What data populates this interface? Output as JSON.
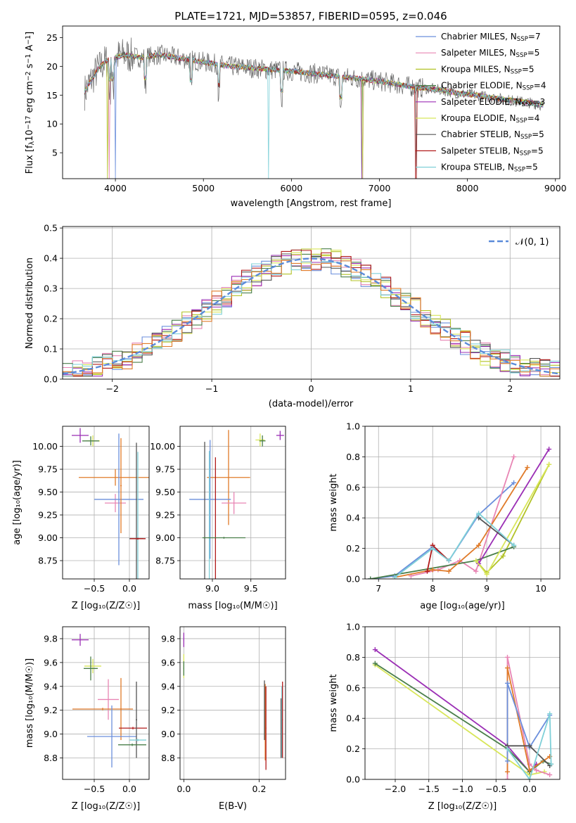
{
  "figure": {
    "title": "PLATE=1721, MJD=53857, FIBERID=0595, z=0.046"
  },
  "colors": {
    "chabrier_miles": "#6b8fdc",
    "salpeter_miles": "#e885b4",
    "kroupa_miles": "#b2c227",
    "chabrier_elodie": "#4a7f4a",
    "salpeter_elodie": "#9b2fb5",
    "kroupa_elodie": "#d8e65a",
    "chabrier_stelib": "#555555",
    "salpeter_stelib": "#b11a1a",
    "kroupa_stelib": "#7fd0d8",
    "orange": "#e07b2a",
    "gaussian": "#5b8bd9"
  },
  "chart_data": [
    {
      "id": "spectrum",
      "type": "line",
      "title": "PLATE=1721, MJD=53857, FIBERID=0595, z=0.046",
      "xlabel": "wavelength [Angstrom, rest frame]",
      "ylabel_parts": {
        "pre": "Flux [f",
        "sub": "λ",
        "mid": "10",
        "sup": "−17",
        "post": " erg cm",
        "sup2": "−2",
        "post2": " s",
        "sup3": "−1",
        "post3": " A",
        "sup4": "−1",
        "end": "]"
      },
      "xlim": [
        3400,
        9050
      ],
      "ylim": [
        0.5,
        27
      ],
      "xticks": [
        4000,
        5000,
        6000,
        7000,
        8000,
        9000
      ],
      "yticks": [
        5,
        10,
        15,
        20,
        25
      ],
      "legend": "top-right",
      "continuum": [
        [
          3650,
          15.5
        ],
        [
          3700,
          17
        ],
        [
          3800,
          19.5
        ],
        [
          3900,
          21
        ],
        [
          4000,
          21.5
        ],
        [
          4100,
          22
        ],
        [
          4300,
          21.5
        ],
        [
          4500,
          22
        ],
        [
          4700,
          21.5
        ],
        [
          4900,
          21
        ],
        [
          5100,
          20.5
        ],
        [
          5300,
          20
        ],
        [
          5500,
          19.8
        ],
        [
          5700,
          19.5
        ],
        [
          5900,
          19.3
        ],
        [
          6100,
          19
        ],
        [
          6300,
          18.7
        ],
        [
          6500,
          18.3
        ],
        [
          6700,
          18
        ],
        [
          6900,
          17.6
        ],
        [
          7100,
          17.2
        ],
        [
          7300,
          16.6
        ],
        [
          7500,
          16.2
        ],
        [
          7700,
          15.9
        ],
        [
          7900,
          15.3
        ],
        [
          8100,
          15.0
        ],
        [
          8300,
          14.5
        ],
        [
          8500,
          14.1
        ],
        [
          8700,
          13.7
        ],
        [
          8850,
          13.3
        ]
      ],
      "absorption_lines": [
        3935,
        3970,
        4340,
        4862,
        5175,
        5890,
        6563
      ],
      "series": [
        {
          "name_pre": "Chabrier MILES, N",
          "name_sub": "SSP",
          "name_post": "=7",
          "color": "#6b8fdc",
          "dip": [
            4000,
            0.5
          ]
        },
        {
          "name_pre": "Salpeter MILES, N",
          "name_sub": "SSP",
          "name_post": "=5",
          "color": "#e885b4",
          "dip": [
            3930,
            0.5
          ]
        },
        {
          "name_pre": "Kroupa MILES, N",
          "name_sub": "SSP",
          "name_post": "=5",
          "color": "#b2c227",
          "dip": [
            3910,
            0.5
          ]
        },
        {
          "name_pre": "Chabrier ELODIE, N",
          "name_sub": "SSP",
          "name_post": "=4",
          "color": "#4a7f4a",
          "dip": [
            6800,
            0.5
          ]
        },
        {
          "name_pre": "Salpeter ELODIE, N",
          "name_sub": "SSP",
          "name_post": "=3",
          "color": "#9b2fb5",
          "dip": [
            6805,
            0.5
          ]
        },
        {
          "name_pre": "Kroupa ELODIE, N",
          "name_sub": "SSP",
          "name_post": "=4",
          "color": "#d8e65a",
          "dip": [
            6810,
            0.5
          ]
        },
        {
          "name_pre": "Chabrier STELIB, N",
          "name_sub": "SSP",
          "name_post": "=5",
          "color": "#555555",
          "dip": [
            7420,
            0.5
          ]
        },
        {
          "name_pre": "Salpeter STELIB, N",
          "name_sub": "SSP",
          "name_post": "=5",
          "color": "#b11a1a",
          "dip": [
            7415,
            0.5
          ]
        },
        {
          "name_pre": "Kroupa STELIB, N",
          "name_sub": "SSP",
          "name_post": "=5",
          "color": "#7fd0d8",
          "dip": [
            5740,
            0.5
          ]
        }
      ]
    },
    {
      "id": "residuals",
      "type": "line",
      "xlabel": "(data-model)/error",
      "ylabel": "Normed distribution",
      "xlim": [
        -2.5,
        2.5
      ],
      "ylim": [
        0,
        0.505
      ],
      "xticks": [
        -2,
        -1,
        0,
        1,
        2
      ],
      "xtick_labels": [
        "−2",
        "−1",
        "0",
        "1",
        "2"
      ],
      "yticks": [
        0.0,
        0.1,
        0.2,
        0.3,
        0.4,
        0.5
      ],
      "ytick_labels": [
        "0.0",
        "0.1",
        "0.2",
        "0.3",
        "0.4",
        "0.5"
      ],
      "grid": true,
      "legend": "top-right",
      "gaussian_label": "𝒩(0, 1)",
      "bin_width": 0.1,
      "bin_start": -2.5
    },
    {
      "id": "age_vs_Z",
      "type": "scatter",
      "xlabel": "Z [log₁₀(Z/Z☉)]",
      "ylabel": "age  [log₁₀(age/yr)]",
      "xlim": [
        -0.95,
        0.28
      ],
      "ylim": [
        8.55,
        10.22
      ],
      "xticks": [
        -0.5,
        0.0
      ],
      "xtick_labels": [
        "−0.5",
        "0.0"
      ],
      "yticks": [
        8.75,
        9.0,
        9.25,
        9.5,
        9.75,
        10.0
      ],
      "ytick_labels": [
        "8.75",
        "9.00",
        "9.25",
        "9.50",
        "9.75",
        "10.00"
      ],
      "points": [
        {
          "x": -0.7,
          "y": 10.12,
          "xerr": 0.12,
          "yerr": 0.08,
          "color": "#9b2fb5"
        },
        {
          "x": -0.52,
          "y": 10.06,
          "xerr": 0.1,
          "yerr": 0.06,
          "color": "#d8e65a"
        },
        {
          "x": -0.55,
          "y": 10.06,
          "xerr": 0.12,
          "yerr": 0.05,
          "color": "#4a7f4a"
        },
        {
          "x": -0.2,
          "y": 9.66,
          "xerr": 0.52,
          "yerr": 0.09,
          "color": "#e07b2a"
        },
        {
          "x": -0.2,
          "y": 9.38,
          "xerr": 0.15,
          "yerr": 0.1,
          "color": "#e885b4"
        },
        {
          "x": -0.15,
          "y": 9.42,
          "xerr": 0.35,
          "yerr": 0.72,
          "color": "#6b8fdc"
        },
        {
          "x": -0.12,
          "y": 9.57,
          "xerr": 0.01,
          "yerr": 0.52,
          "color": "#e07b2a"
        },
        {
          "x": 0.1,
          "y": 8.99,
          "xerr": 0.1,
          "yerr": 1.05,
          "color": "#555555"
        },
        {
          "x": 0.12,
          "y": 8.99,
          "xerr": 0.01,
          "yerr": 0.95,
          "color": "#7fd0d8"
        },
        {
          "x": 0.12,
          "y": 8.99,
          "xerr": 0.11,
          "yerr": 0.01,
          "color": "#b11a1a"
        }
      ]
    },
    {
      "id": "age_vs_mass",
      "type": "scatter",
      "xlabel": "mass [log₁₀(M/M☉)]",
      "ylabel": "",
      "xlim": [
        8.58,
        9.95
      ],
      "ylim": [
        8.55,
        10.22
      ],
      "xticks": [
        9.0,
        9.5
      ],
      "xtick_labels": [
        "9.0",
        "9.5"
      ],
      "yticks": [
        8.75,
        9.0,
        9.25,
        9.5,
        9.75,
        10.0
      ],
      "ytick_labels": [
        "8.75",
        "9.00",
        "9.25",
        "9.50",
        "9.75",
        "10.00"
      ],
      "points": [
        {
          "x": 9.88,
          "y": 10.12,
          "xerr": 0.05,
          "yerr": 0.05,
          "color": "#9b2fb5"
        },
        {
          "x": 9.62,
          "y": 10.07,
          "xerr": 0.06,
          "yerr": 0.07,
          "color": "#d8e65a"
        },
        {
          "x": 9.65,
          "y": 10.06,
          "xerr": 0.04,
          "yerr": 0.06,
          "color": "#4a7f4a"
        },
        {
          "x": 9.21,
          "y": 9.66,
          "xerr": 0.28,
          "yerr": 0.52,
          "color": "#e07b2a"
        },
        {
          "x": 9.28,
          "y": 9.38,
          "xerr": 0.16,
          "yerr": 0.12,
          "color": "#e885b4"
        },
        {
          "x": 8.97,
          "y": 9.42,
          "xerr": 0.27,
          "yerr": 0.65,
          "color": "#6b8fdc"
        },
        {
          "x": 9.04,
          "y": 9.0,
          "xerr": 0.01,
          "yerr": 0.88,
          "color": "#b11a1a"
        },
        {
          "x": 8.9,
          "y": 9.0,
          "xerr": 0.01,
          "yerr": 1.05,
          "color": "#555555"
        },
        {
          "x": 8.96,
          "y": 9.0,
          "xerr": 0.01,
          "yerr": 0.95,
          "color": "#7fd0d8"
        },
        {
          "x": 9.15,
          "y": 9.0,
          "xerr": 0.28,
          "yerr": 0.01,
          "color": "#4a7f4a"
        }
      ]
    },
    {
      "id": "mw_vs_age",
      "type": "line",
      "xlabel": "age  [log₁₀(age/yr)]",
      "ylabel": "mass weight",
      "xlim": [
        6.75,
        10.35
      ],
      "ylim": [
        0,
        1
      ],
      "xticks": [
        7,
        8,
        9,
        10
      ],
      "xtick_labels": [
        "7",
        "8",
        "9",
        "10"
      ],
      "yticks": [
        0,
        0.2,
        0.4,
        0.6,
        0.8,
        1.0
      ],
      "ytick_labels": [
        "0.0",
        "0.2",
        "0.4",
        "0.6",
        "0.8",
        "1.0"
      ],
      "grid": true,
      "series": [
        {
          "color": "#6b8fdc",
          "x": [
            6.85,
            7.3,
            8.0,
            8.3,
            8.85,
            9.5
          ],
          "y": [
            0.0,
            0.02,
            0.21,
            0.12,
            0.42,
            0.63
          ]
        },
        {
          "color": "#e885b4",
          "x": [
            7.6,
            8.1,
            8.5,
            8.8,
            9.5
          ],
          "y": [
            0.02,
            0.06,
            0.12,
            0.05,
            0.8
          ]
        },
        {
          "color": "#b2c227",
          "x": [
            8.8,
            9.0,
            9.3,
            10.15
          ],
          "y": [
            0.12,
            0.04,
            0.15,
            0.75
          ]
        },
        {
          "color": "#4a7f4a",
          "x": [
            6.85,
            8.8,
            9.5
          ],
          "y": [
            0.0,
            0.12,
            0.21
          ]
        },
        {
          "color": "#9b2fb5",
          "x": [
            8.85,
            10.15
          ],
          "y": [
            0.1,
            0.85
          ]
        },
        {
          "color": "#d8e65a",
          "x": [
            8.8,
            9.0,
            10.15
          ],
          "y": [
            0.12,
            0.03,
            0.75
          ]
        },
        {
          "color": "#e07b2a",
          "x": [
            7.3,
            8.0,
            8.3,
            8.85,
            9.75
          ],
          "y": [
            0.01,
            0.06,
            0.05,
            0.22,
            0.73
          ]
        },
        {
          "color": "#555555",
          "x": [
            8.85,
            9.5
          ],
          "y": [
            0.4,
            0.22
          ]
        },
        {
          "color": "#b11a1a",
          "x": [
            7.9,
            8.0,
            8.3
          ],
          "y": [
            0.05,
            0.22,
            0.12
          ]
        },
        {
          "color": "#7fd0d8",
          "x": [
            7.3,
            8.0,
            8.3,
            8.85,
            9.5
          ],
          "y": [
            0.01,
            0.2,
            0.12,
            0.43,
            0.22
          ]
        }
      ]
    },
    {
      "id": "mass_vs_Z",
      "type": "scatter",
      "xlabel": "Z [log₁₀(Z/Z☉)]",
      "ylabel": "mass [log₁₀(M/M☉)]",
      "xlim": [
        -0.95,
        0.28
      ],
      "ylim": [
        8.62,
        9.9
      ],
      "xticks": [
        -0.5,
        0.0
      ],
      "xtick_labels": [
        "−0.5",
        "0.0"
      ],
      "yticks": [
        8.8,
        9.0,
        9.2,
        9.4,
        9.6,
        9.8
      ],
      "ytick_labels": [
        "8.8",
        "9.0",
        "9.2",
        "9.4",
        "9.6",
        "9.8"
      ],
      "points": [
        {
          "x": -0.7,
          "y": 9.79,
          "xerr": 0.12,
          "yerr": 0.05,
          "color": "#9b2fb5"
        },
        {
          "x": -0.52,
          "y": 9.57,
          "xerr": 0.12,
          "yerr": 0.06,
          "color": "#d8e65a"
        },
        {
          "x": -0.55,
          "y": 9.55,
          "xerr": 0.1,
          "yerr": 0.1,
          "color": "#4a7f4a"
        },
        {
          "x": -0.3,
          "y": 9.29,
          "xerr": 0.15,
          "yerr": 0.17,
          "color": "#e885b4"
        },
        {
          "x": -0.38,
          "y": 9.21,
          "xerr": 0.43,
          "yerr": 0.01,
          "color": "#e07b2a"
        },
        {
          "x": -0.12,
          "y": 9.21,
          "xerr": 0.01,
          "yerr": 0.26,
          "color": "#e07b2a"
        },
        {
          "x": -0.25,
          "y": 8.98,
          "xerr": 0.35,
          "yerr": 0.26,
          "color": "#6b8fdc"
        },
        {
          "x": 0.05,
          "y": 9.05,
          "xerr": 0.2,
          "yerr": 0.01,
          "color": "#b11a1a"
        },
        {
          "x": 0.1,
          "y": 9.12,
          "xerr": 0.01,
          "yerr": 0.32,
          "color": "#555555"
        },
        {
          "x": 0.04,
          "y": 8.91,
          "xerr": 0.2,
          "yerr": 0.01,
          "color": "#4a7f4a"
        },
        {
          "x": 0.12,
          "y": 8.95,
          "xerr": 0.12,
          "yerr": 0.01,
          "color": "#7fd0d8"
        }
      ]
    },
    {
      "id": "mass_vs_ebv",
      "type": "scatter",
      "xlabel": "E(B-V)",
      "ylabel": "",
      "xlim": [
        -0.01,
        0.27
      ],
      "ylim": [
        8.62,
        9.9
      ],
      "xticks": [
        0.0,
        0.2
      ],
      "xtick_labels": [
        "0.0",
        "0.2"
      ],
      "yticks": [
        8.8,
        9.0,
        9.2,
        9.4,
        9.6,
        9.8
      ],
      "ytick_labels": [
        "8.8",
        "9.0",
        "9.2",
        "9.4",
        "9.6",
        "9.8"
      ],
      "points": [
        {
          "x": 0.0,
          "y": 9.79,
          "xerr": 0.001,
          "yerr": 0.06,
          "color": "#9b2fb5"
        },
        {
          "x": 0.0,
          "y": 9.57,
          "xerr": 0.001,
          "yerr": 0.1,
          "color": "#d8e65a"
        },
        {
          "x": 0.0,
          "y": 9.55,
          "xerr": 0.001,
          "yerr": 0.06,
          "color": "#4a7f4a"
        },
        {
          "x": 0.216,
          "y": 9.1,
          "xerr": 0.001,
          "yerr": 0.32,
          "color": "#e07b2a"
        },
        {
          "x": 0.218,
          "y": 9.05,
          "xerr": 0.001,
          "yerr": 0.35,
          "color": "#b11a1a"
        },
        {
          "x": 0.214,
          "y": 9.2,
          "xerr": 0.001,
          "yerr": 0.25,
          "color": "#555555"
        },
        {
          "x": 0.26,
          "y": 9.1,
          "xerr": 0.001,
          "yerr": 0.3,
          "color": "#7fd0d8"
        },
        {
          "x": 0.262,
          "y": 9.12,
          "xerr": 0.001,
          "yerr": 0.32,
          "color": "#b11a1a"
        },
        {
          "x": 0.258,
          "y": 9.05,
          "xerr": 0.001,
          "yerr": 0.25,
          "color": "#555555"
        }
      ]
    },
    {
      "id": "mw_vs_Z",
      "type": "line",
      "xlabel": "Z [log₁₀(Z/Z☉)]",
      "ylabel": "mass weight",
      "xlim": [
        -2.45,
        0.45
      ],
      "ylim": [
        0,
        1
      ],
      "xticks": [
        -2.0,
        -1.5,
        -1.0,
        -0.5,
        0.0
      ],
      "xtick_labels": [
        "−2.0",
        "−1.5",
        "−1.0",
        "−0.5",
        "0.0"
      ],
      "yticks": [
        0,
        0.2,
        0.4,
        0.6,
        0.8,
        1.0
      ],
      "ytick_labels": [
        "0.0",
        "0.2",
        "0.4",
        "0.6",
        "0.8",
        "1.0"
      ],
      "grid": true,
      "series": [
        {
          "color": "#9b2fb5",
          "x": [
            -2.3,
            -0.33,
            0.0,
            0.1
          ],
          "y": [
            0.85,
            0.22,
            0.05,
            0.1
          ]
        },
        {
          "color": "#d8e65a",
          "x": [
            -2.3,
            0.0,
            0.22
          ],
          "y": [
            0.75,
            0.03,
            0.05
          ]
        },
        {
          "color": "#4a7f4a",
          "x": [
            -2.3,
            -0.33,
            0.0,
            0.2,
            0.32
          ],
          "y": [
            0.76,
            0.2,
            0.05,
            0.12,
            0.1
          ]
        },
        {
          "color": "#e885b4",
          "x": [
            -0.33,
            -0.33,
            0.0,
            0.1,
            0.3
          ],
          "y": [
            0.0,
            0.8,
            0.1,
            0.06,
            0.03
          ]
        },
        {
          "color": "#e07b2a",
          "x": [
            -0.33,
            -0.33,
            0.0,
            0.3
          ],
          "y": [
            0.05,
            0.73,
            0.06,
            0.15
          ]
        },
        {
          "color": "#6b8fdc",
          "x": [
            -0.33,
            -0.33,
            0.0,
            0.3
          ],
          "y": [
            0.12,
            0.63,
            0.21,
            0.42
          ]
        },
        {
          "color": "#555555",
          "x": [
            -0.33,
            0.0,
            0.3
          ],
          "y": [
            0.22,
            0.22,
            0.09
          ]
        },
        {
          "color": "#7fd0d8",
          "x": [
            -0.33,
            0.0,
            0.3,
            0.32
          ],
          "y": [
            0.2,
            0.0,
            0.43,
            0.1
          ]
        }
      ]
    }
  ]
}
